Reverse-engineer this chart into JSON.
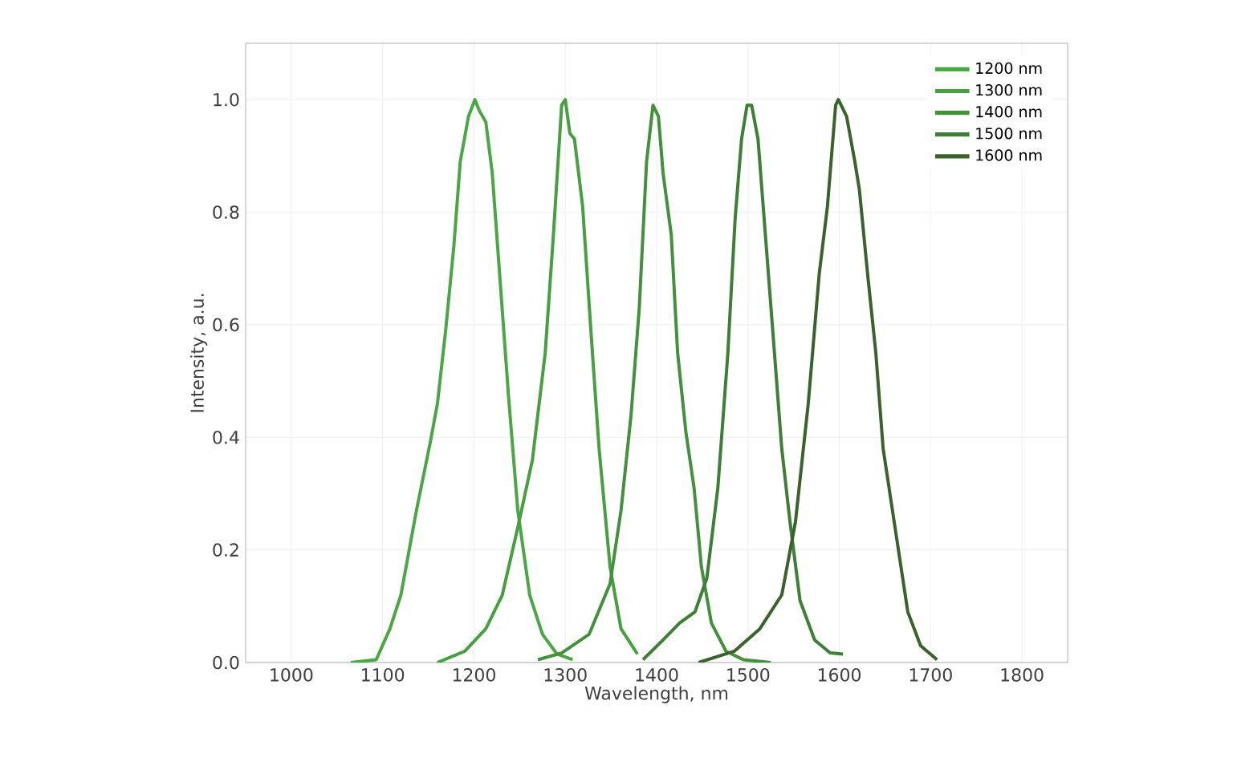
{
  "chart_data": {
    "type": "line",
    "xlabel": "Wavelength, nm",
    "ylabel": "Intensity, a.u.",
    "xlim": [
      950,
      1850
    ],
    "ylim": [
      0,
      1.1
    ],
    "xticks": [
      1000,
      1100,
      1200,
      1300,
      1400,
      1500,
      1600,
      1700,
      1800
    ],
    "yticks": [
      {
        "value": 0,
        "label": "0.0"
      },
      {
        "value": 0.2,
        "label": "0.2"
      },
      {
        "value": 0.4,
        "label": "0.4"
      },
      {
        "value": 0.6,
        "label": "0.6"
      },
      {
        "value": 0.8,
        "label": "0.8"
      },
      {
        "value": 1.0,
        "label": "1.0"
      }
    ],
    "grid": true,
    "legend": "top right",
    "marker": "none",
    "line_style": "solid",
    "series": [
      {
        "name": "1200 nm",
        "color": "#4aa844",
        "x": [
          1065,
          1093,
          1108,
          1120,
          1137,
          1152,
          1160,
          1169,
          1178,
          1185,
          1194,
          1201,
          1206,
          1213,
          1220,
          1229,
          1238,
          1248,
          1261,
          1275,
          1291,
          1308
        ],
        "values": [
          0.0,
          0.005,
          0.06,
          0.12,
          0.27,
          0.39,
          0.46,
          0.59,
          0.74,
          0.89,
          0.97,
          1.0,
          0.98,
          0.96,
          0.87,
          0.67,
          0.47,
          0.27,
          0.12,
          0.05,
          0.015,
          0.005
        ]
      },
      {
        "name": "1300 nm",
        "color": "#47a040",
        "x": [
          1160,
          1190,
          1213,
          1231,
          1248,
          1264,
          1278,
          1287,
          1296,
          1300,
          1305,
          1310,
          1319,
          1328,
          1337,
          1349,
          1361,
          1379
        ],
        "values": [
          0.0,
          0.02,
          0.06,
          0.12,
          0.24,
          0.36,
          0.55,
          0.76,
          0.99,
          1.0,
          0.94,
          0.93,
          0.81,
          0.59,
          0.38,
          0.17,
          0.06,
          0.015
        ]
      },
      {
        "name": "1400 nm",
        "color": "#43913b",
        "x": [
          1270,
          1296,
          1326,
          1349,
          1361,
          1372,
          1381,
          1389,
          1396,
          1402,
          1407,
          1416,
          1423,
          1432,
          1441,
          1449,
          1460,
          1476,
          1495,
          1525
        ],
        "values": [
          0.005,
          0.017,
          0.05,
          0.14,
          0.27,
          0.44,
          0.63,
          0.89,
          0.99,
          0.97,
          0.87,
          0.76,
          0.55,
          0.41,
          0.31,
          0.17,
          0.07,
          0.02,
          0.005,
          0.0
        ]
      },
      {
        "name": "1500 nm",
        "color": "#3e7f36",
        "x": [
          1385,
          1407,
          1425,
          1442,
          1455,
          1467,
          1478,
          1486,
          1493,
          1499,
          1504,
          1511,
          1520,
          1529,
          1537,
          1546,
          1557,
          1573,
          1590,
          1604
        ],
        "values": [
          0.005,
          0.04,
          0.07,
          0.09,
          0.15,
          0.31,
          0.55,
          0.79,
          0.93,
          0.99,
          0.99,
          0.93,
          0.74,
          0.55,
          0.38,
          0.25,
          0.11,
          0.04,
          0.017,
          0.015
        ]
      },
      {
        "name": "1600 nm",
        "color": "#3a632c",
        "x": [
          1446,
          1485,
          1513,
          1537,
          1552,
          1566,
          1578,
          1587,
          1596,
          1599,
          1608,
          1617,
          1622,
          1631,
          1640,
          1648,
          1661,
          1675,
          1689,
          1707
        ],
        "values": [
          0.0,
          0.02,
          0.06,
          0.12,
          0.25,
          0.46,
          0.69,
          0.81,
          0.99,
          1.0,
          0.97,
          0.89,
          0.84,
          0.69,
          0.55,
          0.38,
          0.24,
          0.09,
          0.03,
          0.005
        ]
      }
    ]
  }
}
